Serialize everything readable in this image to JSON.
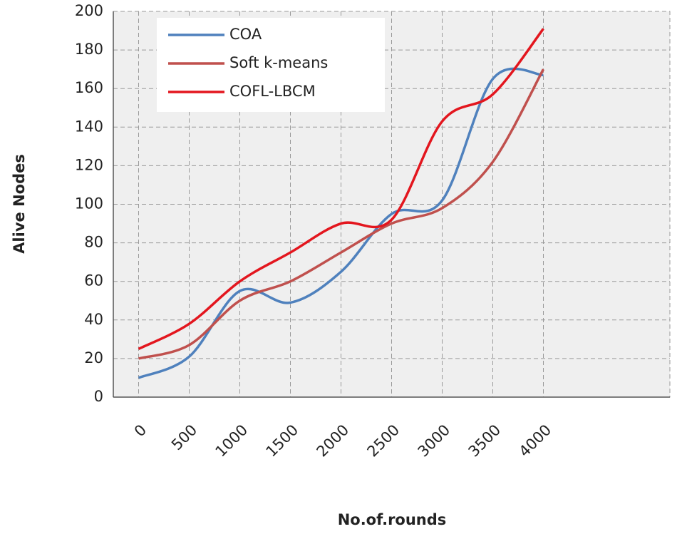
{
  "chart_data": {
    "type": "line",
    "x_label": "No.of.rounds",
    "y_label": "Alive Nodes",
    "x": [
      0,
      500,
      1000,
      1500,
      2000,
      2500,
      3000,
      3500,
      4000
    ],
    "xlim": [
      -250,
      5250
    ],
    "xticks": [
      0,
      500,
      1000,
      1500,
      2000,
      2500,
      3000,
      3500,
      4000
    ],
    "ylim": [
      0,
      200
    ],
    "yticks": [
      0,
      20,
      40,
      60,
      80,
      100,
      120,
      140,
      160,
      180,
      200
    ],
    "grid": true,
    "legend": "upper left",
    "series": [
      {
        "name": "COA",
        "color": "#4f81bd",
        "values": [
          10,
          21,
          55,
          49,
          65,
          95,
          102,
          165,
          167
        ]
      },
      {
        "name": "Soft k-means",
        "color": "#c0504d",
        "values": [
          20,
          27,
          50,
          60,
          75,
          90,
          98,
          122,
          170
        ]
      },
      {
        "name": "COFL-LBCM",
        "color": "#e3161e",
        "values": [
          25,
          38,
          60,
          75,
          90,
          92,
          143,
          157,
          191
        ]
      }
    ]
  }
}
